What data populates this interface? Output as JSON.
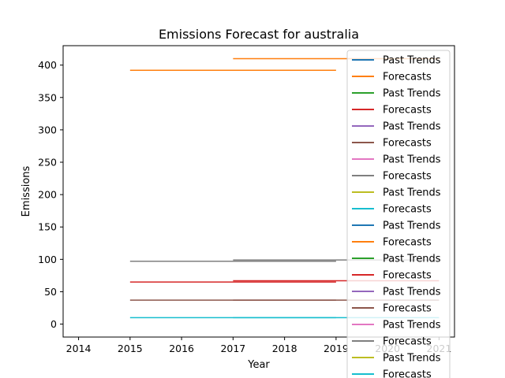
{
  "chart_data": {
    "type": "line",
    "title": "Emissions Forecast for australia",
    "xlabel": "Year",
    "ylabel": "Emissions",
    "xlim": [
      2013.7,
      2021.3
    ],
    "ylim": [
      -20,
      430
    ],
    "xticks": [
      "2014",
      "2015",
      "2016",
      "2017",
      "2018",
      "2019",
      "2020",
      "2021"
    ],
    "yticks": [
      "0",
      "50",
      "100",
      "150",
      "200",
      "250",
      "300",
      "350",
      "400"
    ],
    "grid": false,
    "legend_position": "upper right",
    "series": [
      {
        "name": "Past Trends",
        "color": "#1f77b4",
        "x": [],
        "y": []
      },
      {
        "name": "Forecasts",
        "color": "#ff7f0e",
        "x": [
          2015,
          2019
        ],
        "y": [
          392,
          392
        ]
      },
      {
        "name": "Past Trends",
        "color": "#2ca02c",
        "x": [],
        "y": []
      },
      {
        "name": "Forecasts",
        "color": "#d62728",
        "x": [
          2015,
          2019
        ],
        "y": [
          65,
          65
        ]
      },
      {
        "name": "Past Trends",
        "color": "#9467bd",
        "x": [],
        "y": []
      },
      {
        "name": "Forecasts",
        "color": "#8c564b",
        "x": [
          2015,
          2019
        ],
        "y": [
          37,
          37
        ]
      },
      {
        "name": "Past Trends",
        "color": "#e377c2",
        "x": [],
        "y": []
      },
      {
        "name": "Forecasts",
        "color": "#7f7f7f",
        "x": [
          2015,
          2019
        ],
        "y": [
          97,
          97
        ]
      },
      {
        "name": "Past Trends",
        "color": "#bcbd22",
        "x": [],
        "y": []
      },
      {
        "name": "Forecasts",
        "color": "#17becf",
        "x": [
          2015,
          2019
        ],
        "y": [
          10,
          10
        ]
      },
      {
        "name": "Past Trends",
        "color": "#1f77b4",
        "x": [],
        "y": []
      },
      {
        "name": "Forecasts",
        "color": "#ff7f0e",
        "x": [
          2017,
          2021
        ],
        "y": [
          410,
          410
        ]
      },
      {
        "name": "Past Trends",
        "color": "#2ca02c",
        "x": [],
        "y": []
      },
      {
        "name": "Forecasts",
        "color": "#d62728",
        "x": [
          2017,
          2021
        ],
        "y": [
          67,
          67
        ]
      },
      {
        "name": "Past Trends",
        "color": "#9467bd",
        "x": [],
        "y": []
      },
      {
        "name": "Forecasts",
        "color": "#8c564b",
        "x": [
          2017,
          2021
        ],
        "y": [
          37,
          37
        ]
      },
      {
        "name": "Past Trends",
        "color": "#e377c2",
        "x": [],
        "y": []
      },
      {
        "name": "Forecasts",
        "color": "#7f7f7f",
        "x": [
          2017,
          2021
        ],
        "y": [
          99,
          99
        ]
      },
      {
        "name": "Past Trends",
        "color": "#bcbd22",
        "x": [],
        "y": []
      },
      {
        "name": "Forecasts",
        "color": "#17becf",
        "x": [
          2017,
          2021
        ],
        "y": [
          10,
          10
        ]
      }
    ]
  }
}
